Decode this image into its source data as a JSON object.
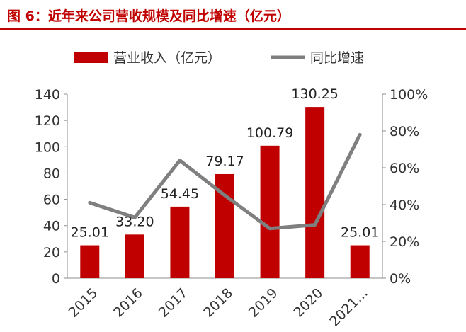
{
  "header": {
    "title": "图 6：近年来公司营收规模及同比增速（亿元）"
  },
  "chart_data": {
    "type": "bar",
    "categories": [
      "2015",
      "2016",
      "2017",
      "2018",
      "2019",
      "2020",
      "2021..."
    ],
    "series": [
      {
        "name": "营业收入（亿元）",
        "type": "bar",
        "axis": "left",
        "values": [
          25.01,
          33.2,
          54.45,
          79.17,
          100.79,
          130.25,
          25.01
        ],
        "data_labels": [
          "25.01",
          "33.20",
          "54.45",
          "79.17",
          "100.79",
          "130.25",
          "25.01"
        ],
        "color": "#c00000"
      },
      {
        "name": "同比增速",
        "type": "line",
        "axis": "right",
        "values": [
          0.41,
          0.33,
          0.64,
          0.45,
          0.27,
          0.29,
          0.78
        ],
        "color": "#7f7f7f"
      }
    ],
    "y_left": {
      "lim": [
        0,
        140
      ],
      "ticks": [
        "0",
        "20",
        "40",
        "60",
        "80",
        "100",
        "120",
        "140"
      ]
    },
    "y_right": {
      "lim": [
        0,
        1
      ],
      "ticks": [
        "0%",
        "20%",
        "40%",
        "60%",
        "80%",
        "100%"
      ]
    },
    "legend_position": "top",
    "grid": false
  }
}
